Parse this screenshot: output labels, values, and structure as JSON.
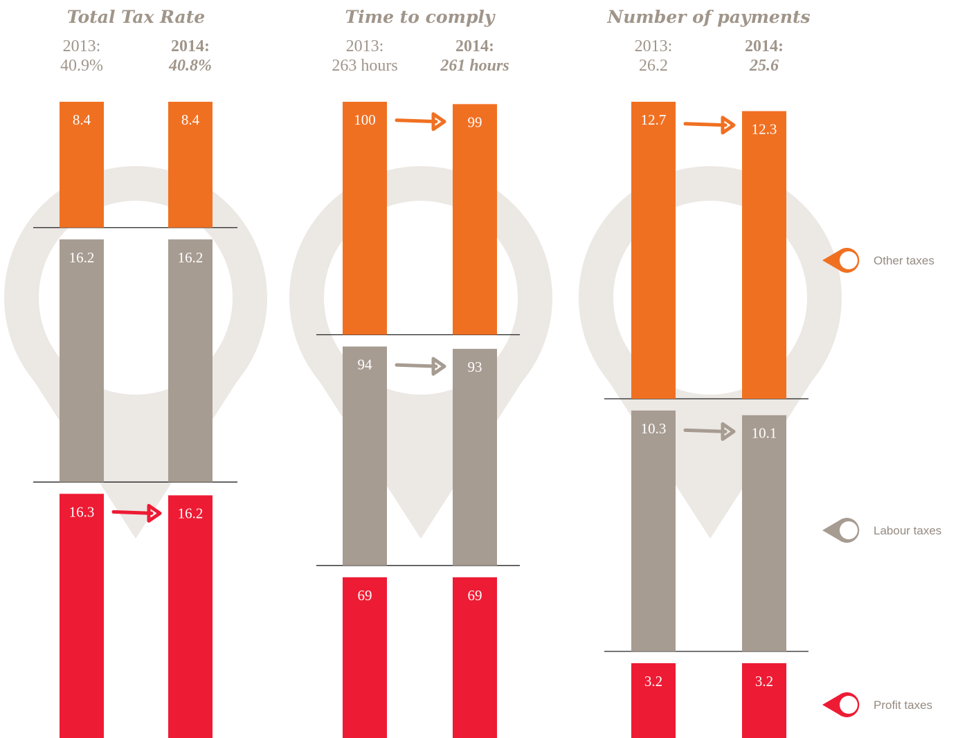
{
  "chart_data": [
    {
      "type": "bar",
      "title": "Total Tax Rate",
      "categories": [
        "2013:",
        "2014:"
      ],
      "totals": [
        "40.9%",
        "40.8%"
      ],
      "series": [
        {
          "name": "Other taxes",
          "color": "#f07022",
          "values": [
            8.4,
            8.4
          ]
        },
        {
          "name": "Labour taxes",
          "color": "#a79c92",
          "values": [
            16.2,
            16.2
          ]
        },
        {
          "name": "Profit taxes",
          "color": "#ed1b34",
          "values": [
            16.3,
            16.2
          ]
        }
      ]
    },
    {
      "type": "bar",
      "title": "Time to comply",
      "categories": [
        "2013:",
        "2014:"
      ],
      "totals": [
        "263 hours",
        "261 hours"
      ],
      "series": [
        {
          "name": "Other taxes",
          "color": "#f07022",
          "values": [
            100,
            99
          ]
        },
        {
          "name": "Labour taxes",
          "color": "#a79c92",
          "values": [
            94,
            93
          ]
        },
        {
          "name": "Profit taxes",
          "color": "#ed1b34",
          "values": [
            69,
            69
          ]
        }
      ]
    },
    {
      "type": "bar",
      "title": "Number of payments",
      "categories": [
        "2013:",
        "2014:"
      ],
      "totals": [
        "26.2",
        "25.6"
      ],
      "series": [
        {
          "name": "Other taxes",
          "color": "#f07022",
          "values": [
            12.7,
            12.3
          ]
        },
        {
          "name": "Labour taxes",
          "color": "#a79c92",
          "values": [
            10.3,
            10.1
          ]
        },
        {
          "name": "Profit taxes",
          "color": "#ed1b34",
          "values": [
            3.2,
            3.2
          ]
        }
      ]
    }
  ]
}
